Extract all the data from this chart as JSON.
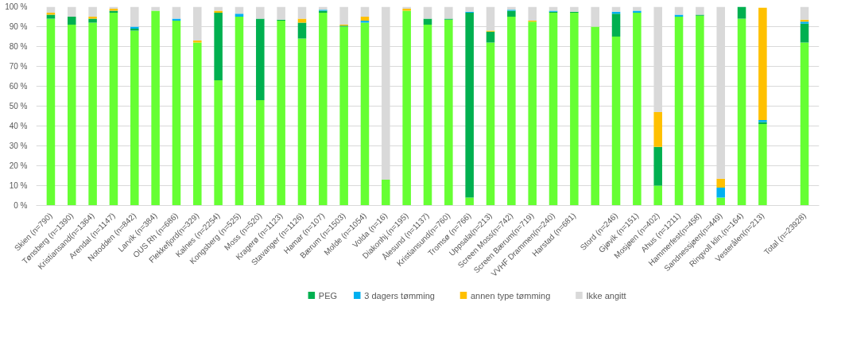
{
  "chart_data": {
    "type": "bar",
    "stacked": true,
    "categories": [
      "Skien (n=790)",
      "Tønsberg (n=1390)",
      "Kristiansand(n=1364)",
      "Arendal (n=1147)",
      "Notodden (n=842)",
      "Larvik (n=384)",
      "OUS Rh (n=686)",
      "Flekkefjord(n=329)",
      "Kalnes (n=2254)",
      "Kongsberg (n=525)",
      "Moss (n=520)",
      "Kragerø (n=1123)",
      "Stavanger (n=1126)",
      "Hamar (n=107)",
      "Bærum (n=1503)",
      "Molde (n=1054)",
      "Volda (n=16)",
      "Diakonhj.(n=195)",
      "Ålesund (n=1137)",
      "Kristiansund(n=760)",
      "Tromsø (n=766)",
      "Uppsala(n=213)",
      "Screen Moss(n=742)",
      "Screen Bærum(n=719)",
      "VVHF Drammen(n=240)",
      "Harstad (n=681)",
      null,
      "Stord (n=246)",
      "Gjøvik (n=151)",
      "Mosjøen (n=402)",
      "Ahus (n=1211)",
      "Hammerfest(n=458)",
      "Sandnessjøen(n=449)",
      "Ringvoll klin.(n=164)",
      "Vesterålen(n=213)",
      null,
      "Total (n=23928)"
    ],
    "series": [
      {
        "color": "#66ff33",
        "values": [
          94,
          91,
          92,
          97,
          88,
          98,
          93,
          82,
          63,
          95,
          53,
          93,
          84,
          97,
          90,
          92,
          13,
          98,
          91,
          93.5,
          4,
          82,
          95,
          92.5,
          97,
          97,
          90,
          85,
          97,
          10,
          95,
          95.5,
          4,
          94,
          41,
          null,
          82
        ]
      },
      {
        "name": "PEG",
        "color": "#00b050",
        "values": [
          2,
          4,
          2,
          1,
          1,
          0,
          0,
          0,
          34,
          0,
          41,
          0.5,
          8,
          1,
          0.5,
          0,
          0,
          0,
          3,
          0.5,
          93,
          5.5,
          3,
          0,
          0.5,
          0.5,
          0,
          11.5,
          0,
          19.5,
          0,
          0.5,
          0,
          6,
          1,
          null,
          9.5
        ]
      },
      {
        "name": "3 dagers tømming",
        "color": "#00b0f0",
        "values": [
          0,
          0,
          0,
          0,
          1,
          0,
          1,
          0,
          0,
          1.5,
          0,
          0,
          0,
          0.5,
          0,
          1,
          0,
          0,
          0,
          0,
          0.5,
          0,
          0.5,
          0,
          0.5,
          0,
          0,
          1,
          1,
          0,
          1,
          0,
          5,
          0,
          1,
          null,
          1
        ]
      },
      {
        "name": "annen type tømming",
        "color": "#ffc000",
        "values": [
          1,
          0,
          1,
          1,
          0,
          0,
          0,
          1,
          1,
          0,
          0,
          0,
          2,
          0,
          0.5,
          2,
          0,
          1,
          0,
          0,
          0,
          0.5,
          0,
          0.5,
          0,
          0,
          0,
          0,
          0,
          17.5,
          0,
          0,
          4.5,
          0,
          56.5,
          null,
          1
        ]
      },
      {
        "name": "Ikke angitt",
        "color": "#d9d9d9",
        "values": [
          3,
          5,
          5,
          1,
          10,
          2,
          6,
          17,
          2,
          3.5,
          6,
          6.5,
          6,
          1.5,
          9,
          5,
          87,
          1,
          6,
          6,
          2.5,
          12,
          1.5,
          7,
          2,
          2.5,
          10,
          2.5,
          2,
          53,
          4,
          4,
          86.5,
          0,
          null,
          null,
          6.5
        ]
      }
    ],
    "ylim": [
      0,
      100
    ],
    "yticks": [
      {
        "value": 0,
        "label": "0 %"
      },
      {
        "value": 10,
        "label": "10 %"
      },
      {
        "value": 20,
        "label": "20 %"
      },
      {
        "value": 30,
        "label": "30 %"
      },
      {
        "value": 40,
        "label": "40 %"
      },
      {
        "value": 50,
        "label": "50 %"
      },
      {
        "value": 60,
        "label": "60 %"
      },
      {
        "value": 70,
        "label": "70 %"
      },
      {
        "value": 80,
        "label": "80 %"
      },
      {
        "value": 90,
        "label": "90 %"
      },
      {
        "value": 100,
        "label": "100 %"
      }
    ],
    "grid": "y",
    "legend": "bottom"
  }
}
